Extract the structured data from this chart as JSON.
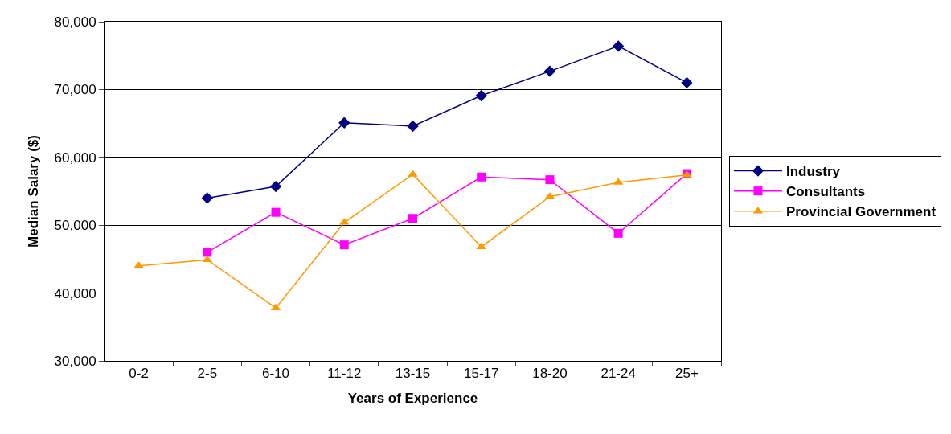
{
  "chart_data": {
    "type": "line",
    "xlabel": "Years of Experience",
    "ylabel": "Median Salary ($)",
    "categories": [
      "0-2",
      "2-5",
      "6-10",
      "11-12",
      "13-15",
      "15-17",
      "18-20",
      "21-24",
      "25+"
    ],
    "series": [
      {
        "name": "Industry",
        "color": "#000080",
        "marker": "diamond",
        "values": [
          null,
          54000,
          55700,
          65100,
          64600,
          69100,
          72700,
          76400,
          71000
        ]
      },
      {
        "name": "Consultants",
        "color": "#ff00ff",
        "marker": "square",
        "values": [
          null,
          46000,
          51900,
          47100,
          51000,
          57100,
          56700,
          48800,
          57600
        ]
      },
      {
        "name": "Provincial Government",
        "color": "#ff9900",
        "marker": "triangle",
        "values": [
          44000,
          44900,
          37800,
          50400,
          57500,
          46800,
          54200,
          56300,
          57400
        ]
      }
    ],
    "ylim": [
      30000,
      80000
    ],
    "yticks": [
      {
        "value": 30000,
        "label": "30,000"
      },
      {
        "value": 40000,
        "label": "40,000"
      },
      {
        "value": 50000,
        "label": "50,000"
      },
      {
        "value": 60000,
        "label": "60,000"
      },
      {
        "value": 70000,
        "label": "70,000"
      },
      {
        "value": 80000,
        "label": "80,000"
      }
    ],
    "grid": "y",
    "legend": "right",
    "line_style": "solid"
  }
}
